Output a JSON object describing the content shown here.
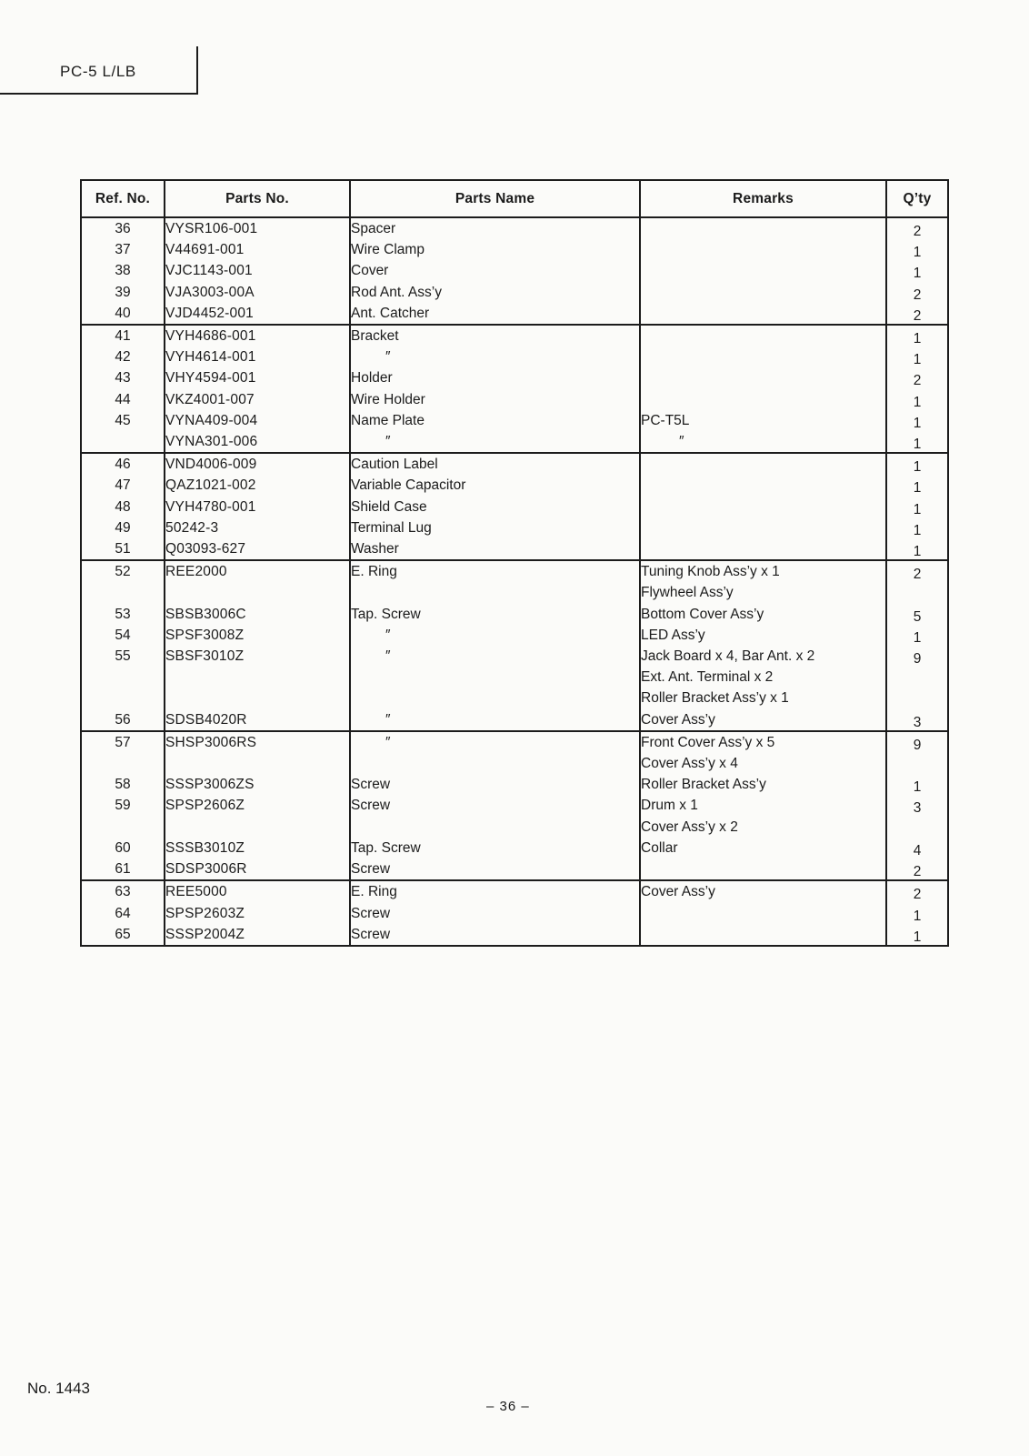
{
  "page": {
    "model_label": "PC-5 L/LB",
    "doc_number": "No. 1443",
    "page_number": "– 36 –"
  },
  "table": {
    "headers": [
      "Ref. No.",
      "Parts No.",
      "Parts Name",
      "Remarks",
      "Q’ty"
    ],
    "ditto_mark": "″",
    "groups": [
      {
        "rows": [
          {
            "ref": "36",
            "parts_no": "VYSR106-001",
            "name": "Spacer",
            "remarks": "",
            "qty": "2"
          },
          {
            "ref": "37",
            "parts_no": "V44691-001",
            "name": "Wire Clamp",
            "remarks": "",
            "qty": "1"
          },
          {
            "ref": "38",
            "parts_no": "VJC1143-001",
            "name": "Cover",
            "remarks": "",
            "qty": "1"
          },
          {
            "ref": "39",
            "parts_no": "VJA3003-00A",
            "name": "Rod Ant. Ass’y",
            "remarks": "",
            "qty": "2"
          },
          {
            "ref": "40",
            "parts_no": "VJD4452-001",
            "name": "Ant. Catcher",
            "remarks": "",
            "qty": "2"
          }
        ]
      },
      {
        "rows": [
          {
            "ref": "41",
            "parts_no": "VYH4686-001",
            "name": "Bracket",
            "remarks": "",
            "qty": "1"
          },
          {
            "ref": "42",
            "parts_no": "VYH4614-001",
            "name": "″",
            "remarks": "",
            "qty": "1"
          },
          {
            "ref": "43",
            "parts_no": "VHY4594-001",
            "name": "Holder",
            "remarks": "",
            "qty": "2"
          },
          {
            "ref": "44",
            "parts_no": "VKZ4001-007",
            "name": "Wire Holder",
            "remarks": "",
            "qty": "1"
          },
          {
            "ref": "45",
            "parts_no": "VYNA409-004",
            "name": "Name Plate",
            "remarks": "PC-T5L",
            "qty": "1"
          },
          {
            "ref": "",
            "parts_no": "VYNA301-006",
            "name": "″",
            "remarks": "″",
            "qty": "1"
          }
        ]
      },
      {
        "rows": [
          {
            "ref": "46",
            "parts_no": "VND4006-009",
            "name": "Caution Label",
            "remarks": "",
            "qty": "1"
          },
          {
            "ref": "47",
            "parts_no": "QAZ1021-002",
            "name": "Variable Capacitor",
            "remarks": "",
            "qty": "1"
          },
          {
            "ref": "48",
            "parts_no": "VYH4780-001",
            "name": "Shield Case",
            "remarks": "",
            "qty": "1"
          },
          {
            "ref": "49",
            "parts_no": "50242-3",
            "name": "Terminal Lug",
            "remarks": "",
            "qty": "1"
          },
          {
            "ref": "51",
            "parts_no": "Q03093-627",
            "name": "Washer",
            "remarks": "",
            "qty": "1"
          }
        ]
      },
      {
        "rows": [
          {
            "ref": "52",
            "parts_no": "REE2000",
            "name": "E. Ring",
            "remarks": "Tuning Knob Ass’y x 1",
            "qty": "2"
          },
          {
            "ref": "",
            "parts_no": "",
            "name": "",
            "remarks": "Flywheel Ass’y",
            "qty": ""
          },
          {
            "ref": "53",
            "parts_no": "SBSB3006C",
            "name": "Tap. Screw",
            "remarks": "Bottom Cover Ass’y",
            "qty": "5"
          },
          {
            "ref": "54",
            "parts_no": "SPSF3008Z",
            "name": "″",
            "remarks": "LED Ass’y",
            "qty": "1"
          },
          {
            "ref": "55",
            "parts_no": "SBSF3010Z",
            "name": "″",
            "remarks": "Jack Board x 4, Bar Ant. x 2",
            "qty": "9"
          },
          {
            "ref": "",
            "parts_no": "",
            "name": "",
            "remarks": "Ext. Ant. Terminal x 2",
            "qty": ""
          },
          {
            "ref": "",
            "parts_no": "",
            "name": "",
            "remarks": "Roller Bracket Ass’y x 1",
            "qty": ""
          },
          {
            "ref": "56",
            "parts_no": "SDSB4020R",
            "name": "″",
            "remarks": "Cover Ass’y",
            "qty": "3"
          }
        ]
      },
      {
        "rows": [
          {
            "ref": "57",
            "parts_no": "SHSP3006RS",
            "name": "″",
            "remarks": "Front Cover Ass’y x 5",
            "qty": "9"
          },
          {
            "ref": "",
            "parts_no": "",
            "name": "",
            "remarks": "Cover Ass’y x 4",
            "qty": ""
          },
          {
            "ref": "58",
            "parts_no": "SSSP3006ZS",
            "name": "Screw",
            "remarks": "Roller Bracket Ass’y",
            "qty": "1"
          },
          {
            "ref": "59",
            "parts_no": "SPSP2606Z",
            "name": "Screw",
            "remarks": "Drum x 1",
            "qty": "3"
          },
          {
            "ref": "",
            "parts_no": "",
            "name": "",
            "remarks": "Cover Ass’y x 2",
            "qty": ""
          },
          {
            "ref": "60",
            "parts_no": "SSSB3010Z",
            "name": "Tap. Screw",
            "remarks": "Collar",
            "qty": "4"
          },
          {
            "ref": "61",
            "parts_no": "SDSP3006R",
            "name": "Screw",
            "remarks": "",
            "qty": "2"
          }
        ]
      },
      {
        "rows": [
          {
            "ref": "63",
            "parts_no": "REE5000",
            "name": "E. Ring",
            "remarks": "Cover Ass’y",
            "qty": "2"
          },
          {
            "ref": "64",
            "parts_no": "SPSP2603Z",
            "name": "Screw",
            "remarks": "",
            "qty": "1"
          },
          {
            "ref": "65",
            "parts_no": "SSSP2004Z",
            "name": "Screw",
            "remarks": "",
            "qty": "1"
          }
        ]
      }
    ]
  }
}
